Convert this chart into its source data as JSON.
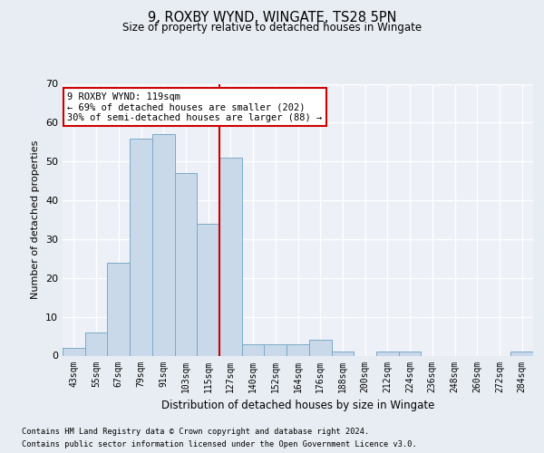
{
  "title_line1": "9, ROXBY WYND, WINGATE, TS28 5PN",
  "title_line2": "Size of property relative to detached houses in Wingate",
  "xlabel": "Distribution of detached houses by size in Wingate",
  "ylabel": "Number of detached properties",
  "bin_labels": [
    "43sqm",
    "55sqm",
    "67sqm",
    "79sqm",
    "91sqm",
    "103sqm",
    "115sqm",
    "127sqm",
    "140sqm",
    "152sqm",
    "164sqm",
    "176sqm",
    "188sqm",
    "200sqm",
    "212sqm",
    "224sqm",
    "236sqm",
    "248sqm",
    "260sqm",
    "272sqm",
    "284sqm"
  ],
  "bar_heights": [
    2,
    6,
    24,
    56,
    57,
    47,
    34,
    51,
    3,
    3,
    3,
    4,
    1,
    0,
    1,
    1,
    0,
    0,
    0,
    0,
    1
  ],
  "bar_color": "#c9d9ea",
  "bar_edge_color": "#7aaac8",
  "vline_color": "#cc0000",
  "annotation_text": "9 ROXBY WYND: 119sqm\n← 69% of detached houses are smaller (202)\n30% of semi-detached houses are larger (88) →",
  "annotation_box_color": "#ffffff",
  "annotation_box_edge": "#cc0000",
  "ylim": [
    0,
    70
  ],
  "yticks": [
    0,
    10,
    20,
    30,
    40,
    50,
    60,
    70
  ],
  "footer_line1": "Contains HM Land Registry data © Crown copyright and database right 2024.",
  "footer_line2": "Contains public sector information licensed under the Open Government Licence v3.0.",
  "bg_color": "#e8edf3",
  "plot_bg_color": "#edf1f7"
}
